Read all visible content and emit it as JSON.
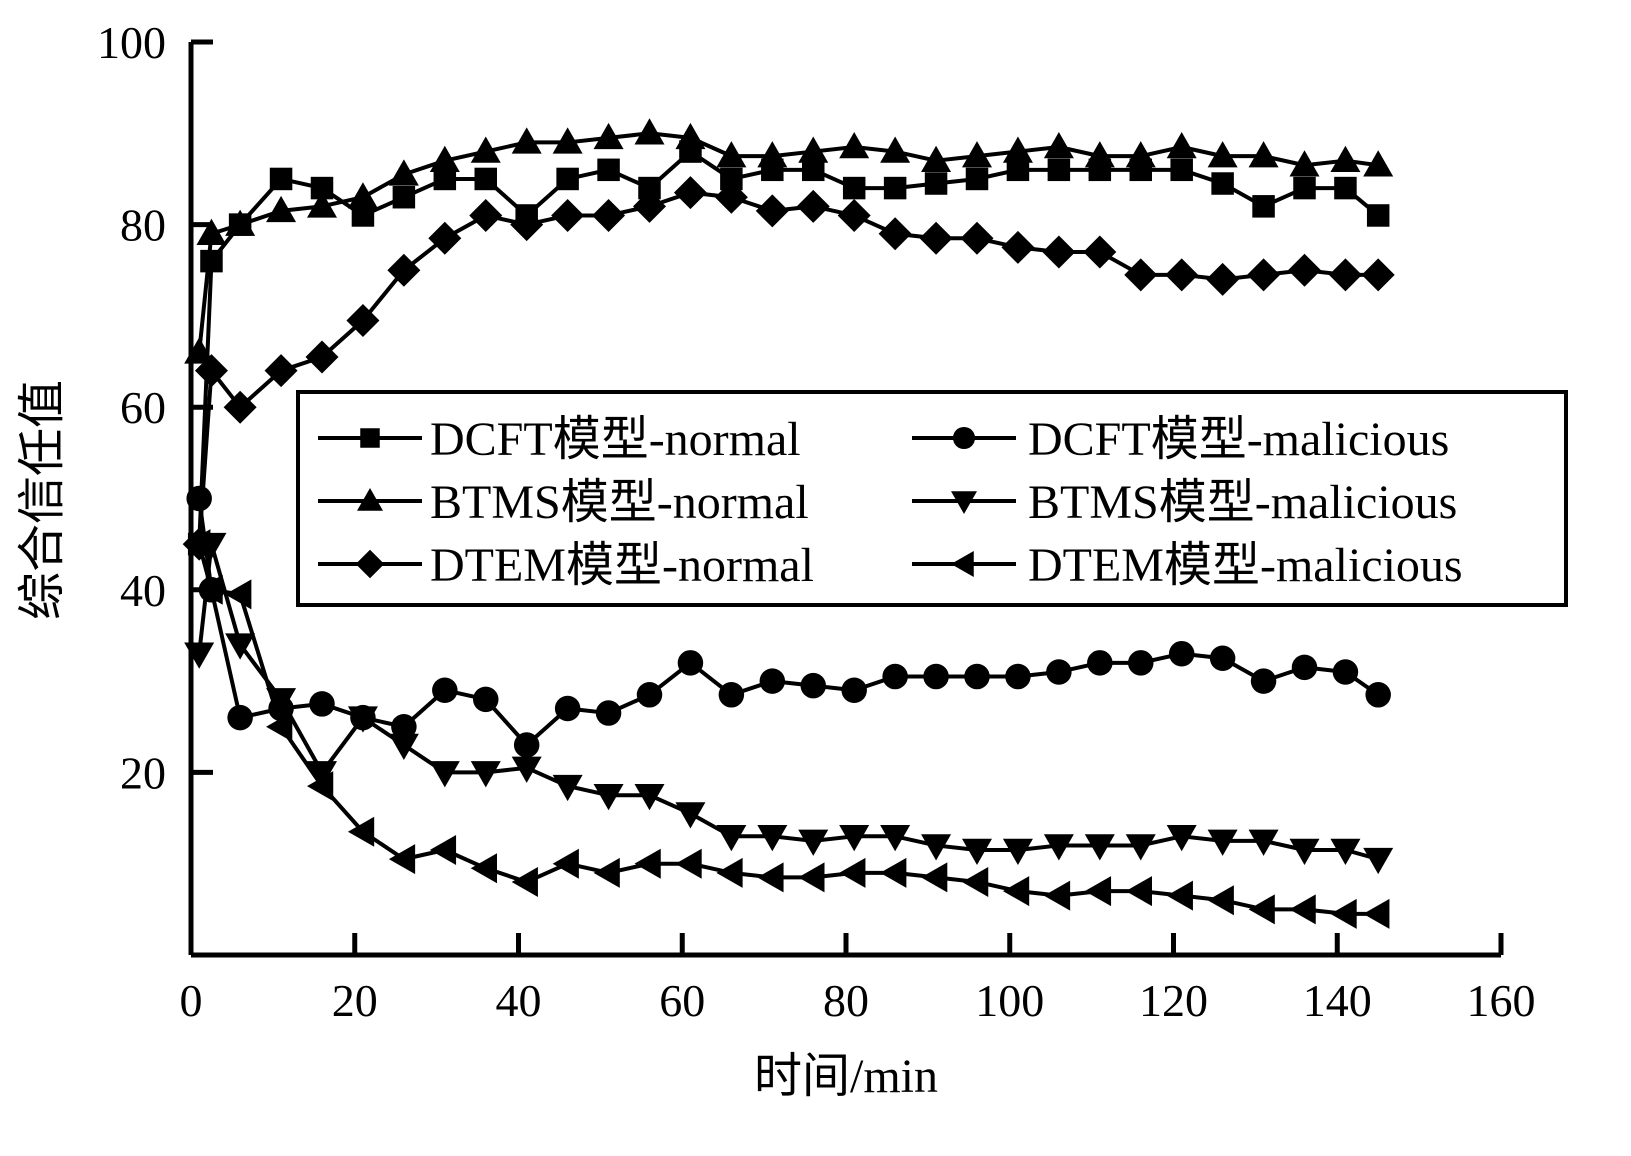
{
  "chart_data": {
    "type": "line",
    "title": "",
    "xlabel": "时间/min",
    "ylabel": "综合信任值",
    "xlim": [
      0,
      160
    ],
    "ylim": [
      0,
      100
    ],
    "xticks": [
      0,
      20,
      40,
      60,
      80,
      100,
      120,
      140,
      160
    ],
    "yticks": [
      20,
      40,
      60,
      80,
      100
    ],
    "grid": false,
    "legend_position": "center",
    "x": [
      1,
      2.5,
      6,
      11,
      16,
      21,
      26,
      31,
      36,
      41,
      46,
      51,
      56,
      61,
      66,
      71,
      76,
      81,
      86,
      91,
      96,
      101,
      106,
      111,
      116,
      121,
      126,
      131,
      136,
      141,
      145
    ],
    "series": [
      {
        "name": "DCFT模型-normal",
        "marker": "square",
        "values": [
          45,
          76,
          80,
          85,
          84,
          81,
          83,
          85,
          85,
          81,
          85,
          86,
          84,
          88,
          85,
          86,
          86,
          84,
          84,
          84.5,
          85,
          86,
          86,
          86,
          86,
          86,
          84.5,
          82,
          84,
          84,
          81
        ]
      },
      {
        "name": "DCFT模型-malicious",
        "marker": "circle",
        "values": [
          50,
          40,
          26,
          27,
          27.5,
          26,
          25,
          29,
          28,
          23,
          27,
          26.5,
          28.5,
          32,
          28.5,
          30,
          29.5,
          29,
          30.5,
          30.5,
          30.5,
          30.5,
          31,
          32,
          32,
          33,
          32.5,
          30,
          31.5,
          31,
          28.5
        ]
      },
      {
        "name": "BTMS模型-normal",
        "marker": "triangle-up",
        "values": [
          66,
          79,
          80,
          81.5,
          82,
          83,
          85.5,
          87,
          88,
          89,
          89,
          89.5,
          90,
          89.5,
          87.5,
          87.5,
          88,
          88.5,
          88,
          87,
          87.5,
          88,
          88.5,
          87.5,
          87.5,
          88.5,
          87.5,
          87.5,
          86.5,
          87,
          86.5
        ]
      },
      {
        "name": "BTMS模型-malicious",
        "marker": "triangle-down",
        "values": [
          33,
          45,
          34,
          28,
          20,
          26,
          23,
          20,
          20,
          20.5,
          18.5,
          17.5,
          17.5,
          15.5,
          13,
          13,
          12.5,
          13,
          13,
          12,
          11.5,
          11.5,
          12,
          12,
          12,
          13,
          12.5,
          12.5,
          11.5,
          11.5,
          10.5
        ]
      },
      {
        "name": "DTEM模型-normal",
        "marker": "diamond",
        "values": [
          45,
          64,
          60,
          64,
          65.5,
          69.5,
          75,
          78.5,
          81,
          80,
          81,
          81,
          82,
          83.5,
          83,
          81.5,
          82,
          81,
          79,
          78.5,
          78.5,
          77.5,
          77,
          77,
          74.5,
          74.5,
          74,
          74.5,
          75,
          74.5,
          74.5
        ]
      },
      {
        "name": "DTEM模型-malicious",
        "marker": "triangle-left",
        "values": [
          45,
          40,
          39.5,
          25,
          18.5,
          13.5,
          10.5,
          11.5,
          9.5,
          8,
          10,
          9,
          10,
          10,
          9,
          8.5,
          8.5,
          9,
          9,
          8.5,
          8,
          7,
          6.5,
          7,
          7,
          6.5,
          6,
          5,
          5,
          4.5,
          4.5
        ]
      }
    ]
  }
}
